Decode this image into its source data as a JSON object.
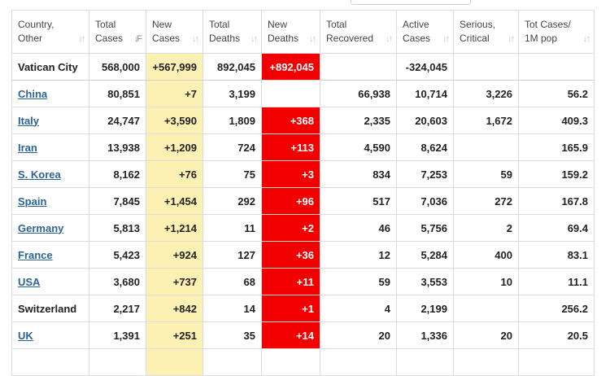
{
  "columns": [
    {
      "label": "Country,\nOther",
      "sort_glyph": "↓↑"
    },
    {
      "label": "Total\nCases",
      "sort_glyph": "↓F",
      "active": true
    },
    {
      "label": "New\nCases",
      "sort_glyph": "↓↑"
    },
    {
      "label": "Total\nDeaths",
      "sort_glyph": "↓↑"
    },
    {
      "label": "New\nDeaths",
      "sort_glyph": "↓↑"
    },
    {
      "label": "Total\nRecovered",
      "sort_glyph": "↓↑"
    },
    {
      "label": "Active\nCases",
      "sort_glyph": "↓↑"
    },
    {
      "label": "Serious,\nCritical",
      "sort_glyph": "↓↑"
    },
    {
      "label": "Tot Cases/\n1M pop",
      "sort_glyph": "↓↑"
    }
  ],
  "rows": [
    {
      "country": "Vatican City",
      "link": false,
      "total_cases": "568,000",
      "new_cases": "+567,999",
      "total_deaths": "892,045",
      "new_deaths": "+892,045",
      "total_recovered": "",
      "active_cases": "-324,045",
      "serious_critical": "",
      "tot_cases_1m": ""
    },
    {
      "country": "China",
      "link": true,
      "total_cases": "80,851",
      "new_cases": "+7",
      "total_deaths": "3,199",
      "new_deaths": "",
      "total_recovered": "66,938",
      "active_cases": "10,714",
      "serious_critical": "3,226",
      "tot_cases_1m": "56.2"
    },
    {
      "country": "Italy",
      "link": true,
      "total_cases": "24,747",
      "new_cases": "+3,590",
      "total_deaths": "1,809",
      "new_deaths": "+368",
      "total_recovered": "2,335",
      "active_cases": "20,603",
      "serious_critical": "1,672",
      "tot_cases_1m": "409.3"
    },
    {
      "country": "Iran",
      "link": true,
      "total_cases": "13,938",
      "new_cases": "+1,209",
      "total_deaths": "724",
      "new_deaths": "+113",
      "total_recovered": "4,590",
      "active_cases": "8,624",
      "serious_critical": "",
      "tot_cases_1m": "165.9"
    },
    {
      "country": "S. Korea",
      "link": true,
      "total_cases": "8,162",
      "new_cases": "+76",
      "total_deaths": "75",
      "new_deaths": "+3",
      "total_recovered": "834",
      "active_cases": "7,253",
      "serious_critical": "59",
      "tot_cases_1m": "159.2"
    },
    {
      "country": "Spain",
      "link": true,
      "total_cases": "7,845",
      "new_cases": "+1,454",
      "total_deaths": "292",
      "new_deaths": "+96",
      "total_recovered": "517",
      "active_cases": "7,036",
      "serious_critical": "272",
      "tot_cases_1m": "167.8"
    },
    {
      "country": "Germany",
      "link": true,
      "total_cases": "5,813",
      "new_cases": "+1,214",
      "total_deaths": "11",
      "new_deaths": "+2",
      "total_recovered": "46",
      "active_cases": "5,756",
      "serious_critical": "2",
      "tot_cases_1m": "69.4"
    },
    {
      "country": "France",
      "link": true,
      "total_cases": "5,423",
      "new_cases": "+924",
      "total_deaths": "127",
      "new_deaths": "+36",
      "total_recovered": "12",
      "active_cases": "5,284",
      "serious_critical": "400",
      "tot_cases_1m": "83.1"
    },
    {
      "country": "USA",
      "link": true,
      "total_cases": "3,680",
      "new_cases": "+737",
      "total_deaths": "68",
      "new_deaths": "+11",
      "total_recovered": "59",
      "active_cases": "3,553",
      "serious_critical": "10",
      "tot_cases_1m": "11.1"
    },
    {
      "country": "Switzerland",
      "link": false,
      "total_cases": "2,217",
      "new_cases": "+842",
      "total_deaths": "14",
      "new_deaths": "+1",
      "total_recovered": "4",
      "active_cases": "2,199",
      "serious_critical": "",
      "tot_cases_1m": "256.2"
    },
    {
      "country": "UK",
      "link": true,
      "total_cases": "1,391",
      "new_cases": "+251",
      "total_deaths": "35",
      "new_deaths": "+14",
      "total_recovered": "20",
      "active_cases": "1,336",
      "serious_critical": "20",
      "tot_cases_1m": "20.5"
    },
    {
      "country": "",
      "link": false,
      "total_cases": "",
      "new_cases": "",
      "total_deaths": "",
      "new_deaths": "",
      "total_recovered": "",
      "active_cases": "",
      "serious_critical": "",
      "tot_cases_1m": ""
    }
  ],
  "colors": {
    "new_cases_bg": "#fdf0b3",
    "new_deaths_bg": "#f20000",
    "link": "#2a6496"
  }
}
